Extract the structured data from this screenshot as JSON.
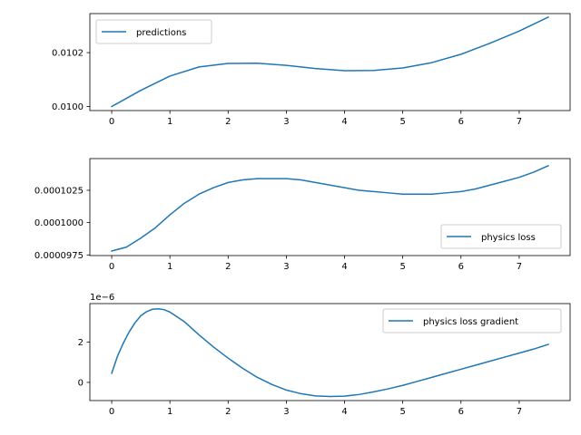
{
  "line_color": "#1f77b4",
  "chart_data": [
    {
      "type": "line",
      "title": "",
      "xlabel": "",
      "ylabel": "",
      "xlim": [
        -0.375,
        7.875
      ],
      "ylim": [
        0.009985,
        0.010345
      ],
      "grid": false,
      "legend_position": "upper-left",
      "x_ticks": [
        0,
        1,
        2,
        3,
        4,
        5,
        6,
        7
      ],
      "x_tick_labels": [
        "0",
        "1",
        "2",
        "3",
        "4",
        "5",
        "6",
        "7"
      ],
      "y_ticks": [
        0.01,
        0.0102
      ],
      "y_tick_labels": [
        "0.0100",
        "0.0102"
      ],
      "series": [
        {
          "name": "predictions",
          "x": [
            0,
            0.5,
            1.0,
            1.5,
            2.0,
            2.5,
            3.0,
            3.5,
            4.0,
            4.5,
            5.0,
            5.5,
            6.0,
            6.5,
            7.0,
            7.5
          ],
          "y": [
            0.01,
            0.01006,
            0.010113,
            0.010147,
            0.01016,
            0.010161,
            0.010153,
            0.010141,
            0.010133,
            0.010134,
            0.010143,
            0.010163,
            0.010194,
            0.010235,
            0.01028,
            0.010332
          ]
        }
      ]
    },
    {
      "type": "line",
      "title": "",
      "xlabel": "",
      "ylabel": "",
      "xlim": [
        -0.375,
        7.875
      ],
      "ylim": [
        9.745e-05,
        0.00010495
      ],
      "grid": false,
      "legend_position": "lower-right",
      "x_ticks": [
        0,
        1,
        2,
        3,
        4,
        5,
        6,
        7
      ],
      "x_tick_labels": [
        "0",
        "1",
        "2",
        "3",
        "4",
        "5",
        "6",
        "7"
      ],
      "y_ticks": [
        9.75e-05,
        0.0001,
        0.0001025
      ],
      "y_tick_labels": [
        "0.0000975",
        "0.0001000",
        "0.0001025"
      ],
      "series": [
        {
          "name": "physics loss",
          "x": [
            0,
            0.25,
            0.5,
            0.75,
            1.0,
            1.25,
            1.5,
            1.75,
            2.0,
            2.25,
            2.5,
            2.75,
            3.0,
            3.25,
            3.5,
            3.75,
            4.0,
            4.25,
            4.5,
            4.75,
            5.0,
            5.25,
            5.5,
            5.75,
            6.0,
            6.25,
            6.5,
            6.75,
            7.0,
            7.25,
            7.5
          ],
          "y": [
            9.78e-05,
            9.81e-05,
            9.88e-05,
            9.96e-05,
            0.0001006,
            0.0001015,
            0.0001022,
            0.0001027,
            0.0001031,
            0.0001033,
            0.0001034,
            0.0001034,
            0.0001034,
            0.0001033,
            0.0001031,
            0.0001029,
            0.0001027,
            0.0001025,
            0.0001024,
            0.0001023,
            0.0001022,
            0.0001022,
            0.0001022,
            0.0001023,
            0.0001024,
            0.0001026,
            0.0001029,
            0.0001032,
            0.0001035,
            0.0001039,
            0.0001044
          ]
        }
      ]
    },
    {
      "type": "line",
      "title": "",
      "xlabel": "",
      "ylabel": "",
      "xlim": [
        -0.375,
        7.875
      ],
      "ylim": [
        -0.9,
        3.9
      ],
      "grid": false,
      "legend_position": "upper-right",
      "y_offset_text": "1e−6",
      "x_ticks": [
        0,
        1,
        2,
        3,
        4,
        5,
        6,
        7
      ],
      "x_tick_labels": [
        "0",
        "1",
        "2",
        "3",
        "4",
        "5",
        "6",
        "7"
      ],
      "y_ticks": [
        0,
        2
      ],
      "y_tick_labels": [
        "0",
        "2"
      ],
      "series": [
        {
          "name": "physics loss gradient",
          "x": [
            0,
            0.1,
            0.2,
            0.3,
            0.4,
            0.5,
            0.6,
            0.7,
            0.8,
            0.9,
            1.0,
            1.25,
            1.5,
            1.75,
            2.0,
            2.25,
            2.5,
            2.75,
            3.0,
            3.25,
            3.5,
            3.75,
            4.0,
            4.25,
            4.5,
            4.75,
            5.0,
            5.25,
            5.5,
            5.75,
            6.0,
            6.25,
            6.5,
            6.75,
            7.0,
            7.25,
            7.5
          ],
          "y": [
            0.45,
            1.3,
            1.95,
            2.5,
            2.95,
            3.3,
            3.5,
            3.62,
            3.64,
            3.6,
            3.48,
            3.0,
            2.35,
            1.75,
            1.2,
            0.7,
            0.25,
            -0.1,
            -0.38,
            -0.56,
            -0.67,
            -0.7,
            -0.68,
            -0.6,
            -0.47,
            -0.32,
            -0.15,
            0.05,
            0.25,
            0.45,
            0.65,
            0.85,
            1.05,
            1.25,
            1.45,
            1.65,
            1.88
          ]
        }
      ]
    }
  ]
}
